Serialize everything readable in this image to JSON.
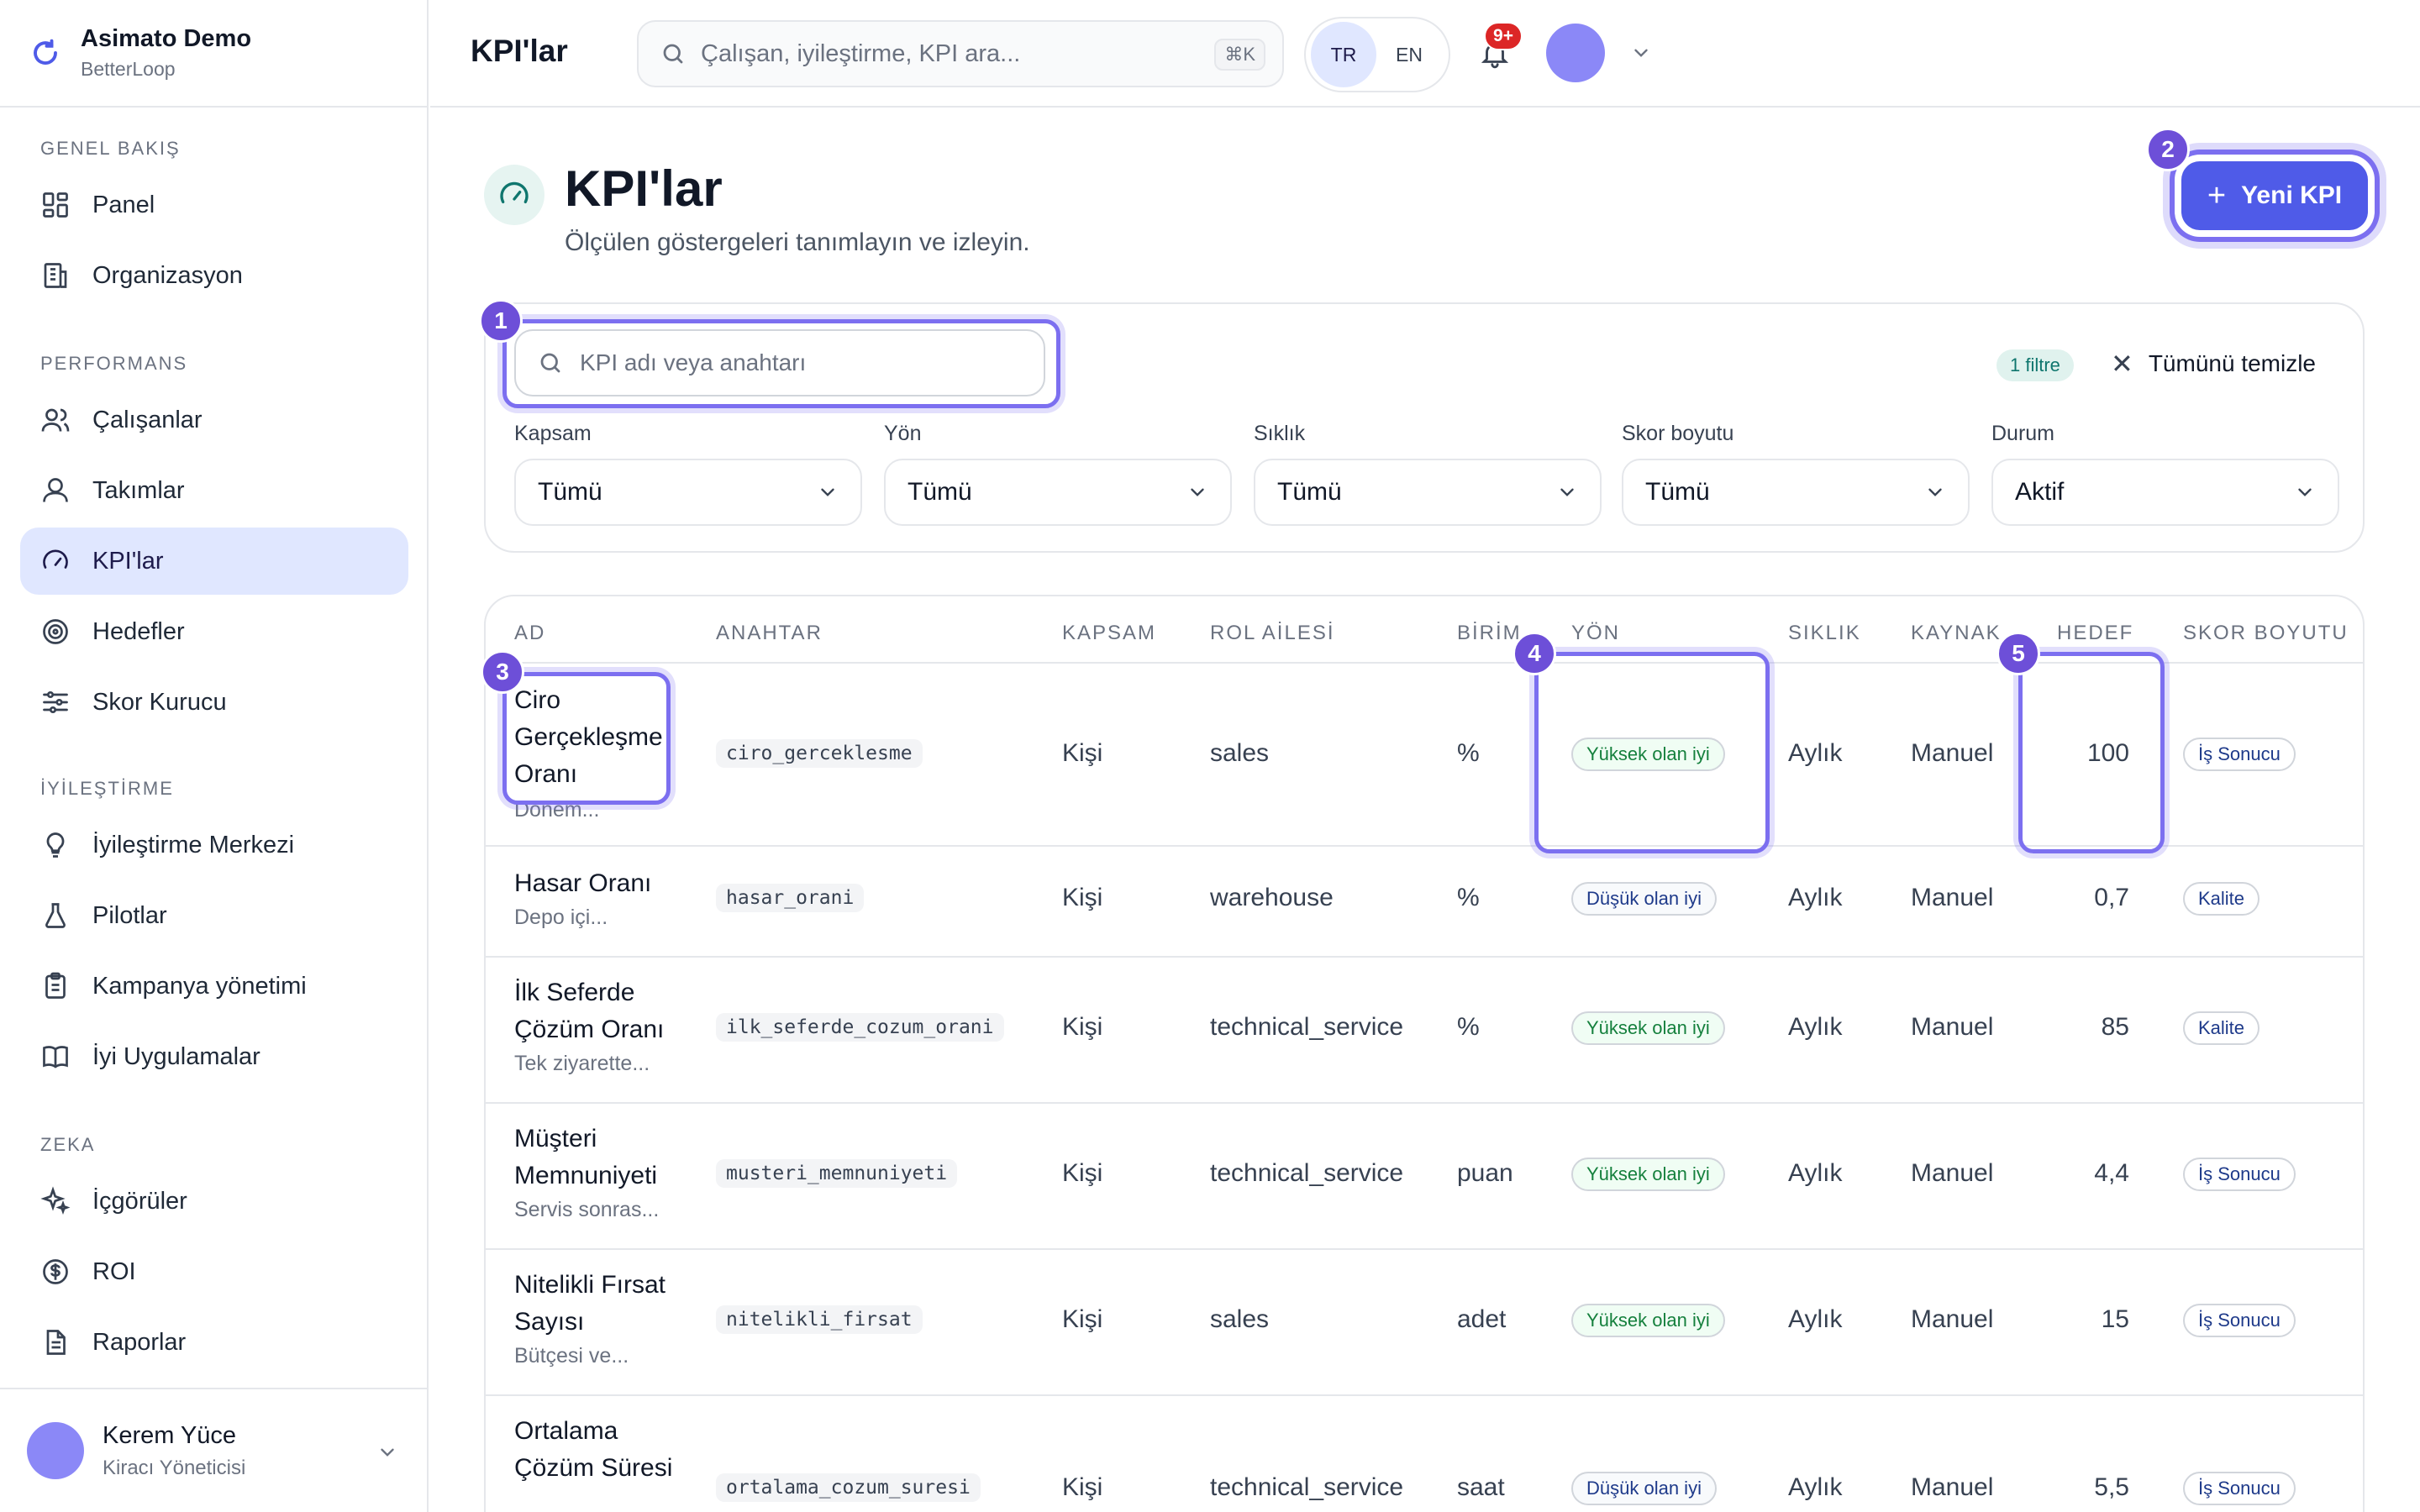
{
  "brand": {
    "title": "Asimato Demo",
    "subtitle": "BetterLoop"
  },
  "sidebar": {
    "sections": [
      {
        "label": "GENEL BAKIŞ",
        "items": [
          {
            "label": "Panel",
            "icon": "grid-icon"
          },
          {
            "label": "Organizasyon",
            "icon": "building-icon"
          }
        ]
      },
      {
        "label": "PERFORMANS",
        "items": [
          {
            "label": "Çalışanlar",
            "icon": "users-icon"
          },
          {
            "label": "Takımlar",
            "icon": "team-icon"
          },
          {
            "label": "KPI'lar",
            "icon": "gauge-icon",
            "active": true
          },
          {
            "label": "Hedefler",
            "icon": "target-icon"
          },
          {
            "label": "Skor Kurucu",
            "icon": "sliders-icon"
          }
        ]
      },
      {
        "label": "İYİLEŞTİRME",
        "items": [
          {
            "label": "İyileştirme Merkezi",
            "icon": "lightbulb-icon"
          },
          {
            "label": "Pilotlar",
            "icon": "flask-icon"
          },
          {
            "label": "Kampanya yönetimi",
            "icon": "clipboard-icon"
          },
          {
            "label": "İyi Uygulamalar",
            "icon": "book-icon"
          }
        ]
      },
      {
        "label": "ZEKA",
        "items": [
          {
            "label": "İçgörüler",
            "icon": "sparkles-icon"
          },
          {
            "label": "ROI",
            "icon": "dollar-icon"
          },
          {
            "label": "Raporlar",
            "icon": "document-icon"
          }
        ]
      }
    ],
    "user": {
      "name": "Kerem Yüce",
      "role": "Kiracı Yöneticisi"
    }
  },
  "topbar": {
    "title": "KPI'lar",
    "search_placeholder": "Çalışan, iyileştirme, KPI ara...",
    "shortcut": "⌘K",
    "lang_tr": "TR",
    "lang_en": "EN",
    "notif_count": "9+"
  },
  "page": {
    "title": "KPI'lar",
    "subtitle": "Ölçülen göstergeleri tanımlayın ve izleyin.",
    "new_button": "Yeni KPI"
  },
  "filters": {
    "search_placeholder": "KPI adı veya anahtarı",
    "active_count": "1 filtre",
    "clear_label": "Tümünü temizle",
    "fields": [
      {
        "label": "Kapsam",
        "value": "Tümü"
      },
      {
        "label": "Yön",
        "value": "Tümü"
      },
      {
        "label": "Sıklık",
        "value": "Tümü"
      },
      {
        "label": "Skor boyutu",
        "value": "Tümü"
      },
      {
        "label": "Durum",
        "value": "Aktif"
      }
    ]
  },
  "table": {
    "headers": [
      "AD",
      "ANAHTAR",
      "KAPSAM",
      "ROL AİLESİ",
      "BİRİM",
      "YÖN",
      "SIKLIK",
      "KAYNAK",
      "HEDEF",
      "SKOR BOYUTU"
    ],
    "rows": [
      {
        "name": "Ciro Gerçekleşme Oranı",
        "desc": "Dönem...",
        "key": "ciro_gerceklesme",
        "scope": "Kişi",
        "family": "sales",
        "unit": "%",
        "direction": "Yüksek olan iyi",
        "dir": "up",
        "freq": "Aylık",
        "source": "Manuel",
        "target": "100",
        "dimension": "İş Sonucu"
      },
      {
        "name": "Hasar Oranı",
        "desc": "Depo içi...",
        "key": "hasar_orani",
        "scope": "Kişi",
        "family": "warehouse",
        "unit": "%",
        "direction": "Düşük olan iyi",
        "dir": "down",
        "freq": "Aylık",
        "source": "Manuel",
        "target": "0,7",
        "dimension": "Kalite"
      },
      {
        "name": "İlk Seferde Çözüm Oranı",
        "desc": "Tek ziyarette...",
        "key": "ilk_seferde_cozum_orani",
        "scope": "Kişi",
        "family": "technical_service",
        "unit": "%",
        "direction": "Yüksek olan iyi",
        "dir": "up",
        "freq": "Aylık",
        "source": "Manuel",
        "target": "85",
        "dimension": "Kalite"
      },
      {
        "name": "Müşteri Memnuniyeti",
        "desc": "Servis sonras...",
        "key": "musteri_memnuniyeti",
        "scope": "Kişi",
        "family": "technical_service",
        "unit": "puan",
        "direction": "Yüksek olan iyi",
        "dir": "up",
        "freq": "Aylık",
        "source": "Manuel",
        "target": "4,4",
        "dimension": "İş Sonucu"
      },
      {
        "name": "Nitelikli Fırsat Sayısı",
        "desc": "Bütçesi ve...",
        "key": "nitelikli_firsat",
        "scope": "Kişi",
        "family": "sales",
        "unit": "adet",
        "direction": "Yüksek olan iyi",
        "dir": "up",
        "freq": "Aylık",
        "source": "Manuel",
        "target": "15",
        "dimension": "İş Sonucu"
      },
      {
        "name": "Ortalama Çözüm Süresi",
        "desc": "",
        "key": "ortalama_cozum_suresi",
        "scope": "Kişi",
        "family": "technical_service",
        "unit": "saat",
        "direction": "Düşük olan iyi",
        "dir": "down",
        "freq": "Aylık",
        "source": "Manuel",
        "target": "5,5",
        "dimension": "İş Sonucu"
      }
    ]
  },
  "annotations": [
    "1",
    "2",
    "3",
    "4",
    "5"
  ],
  "colors": {
    "accent": "#4f5be8",
    "highlight": "#7c6ff0",
    "marker": "#6d4fd8",
    "active_nav": "#e0e7ff"
  }
}
